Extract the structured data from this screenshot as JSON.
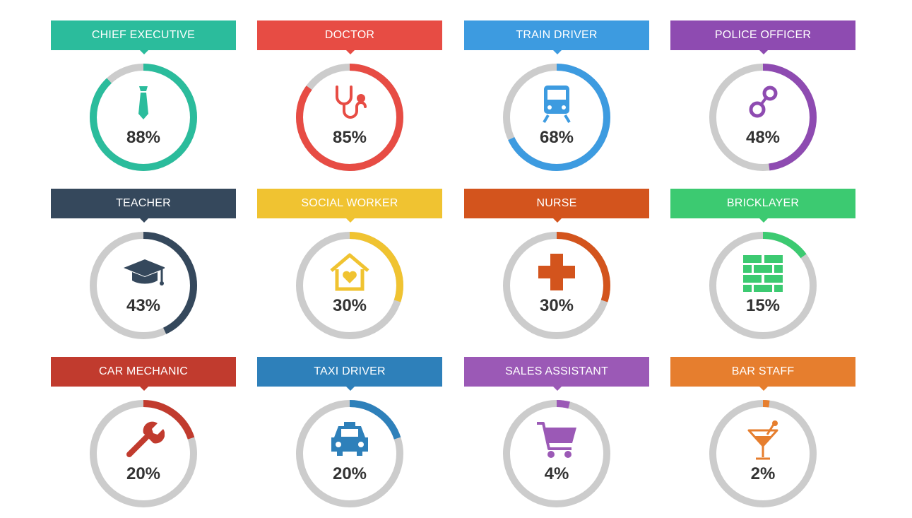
{
  "items": [
    {
      "label": "CHIEF EXECUTIVE",
      "percent_text": "88%",
      "value": 88,
      "color": "#2bbc9c",
      "icon": "tie-icon"
    },
    {
      "label": "DOCTOR",
      "percent_text": "85%",
      "value": 85,
      "color": "#e74c44",
      "icon": "stethoscope-icon"
    },
    {
      "label": "TRAIN DRIVER",
      "percent_text": "68%",
      "value": 68,
      "color": "#3d9be0",
      "icon": "train-icon"
    },
    {
      "label": "POLICE OFFICER",
      "percent_text": "48%",
      "value": 48,
      "color": "#8e4bb1",
      "icon": "handcuffs-icon"
    },
    {
      "label": "TEACHER",
      "percent_text": "43%",
      "value": 43,
      "color": "#35485c",
      "icon": "graduation-cap-icon"
    },
    {
      "label": "SOCIAL WORKER",
      "percent_text": "30%",
      "value": 30,
      "color": "#f0c331",
      "icon": "home-heart-icon"
    },
    {
      "label": "NURSE",
      "percent_text": "30%",
      "value": 30,
      "color": "#d3541d",
      "icon": "medical-cross-icon"
    },
    {
      "label": "BRICKLAYER",
      "percent_text": "15%",
      "value": 15,
      "color": "#3cca71",
      "icon": "brick-wall-icon"
    },
    {
      "label": "CAR MECHANIC",
      "percent_text": "20%",
      "value": 20,
      "color": "#c13b2e",
      "icon": "wrench-icon"
    },
    {
      "label": "TAXI DRIVER",
      "percent_text": "20%",
      "value": 20,
      "color": "#2e80ba",
      "icon": "taxi-icon"
    },
    {
      "label": "SALES ASSISTANT",
      "percent_text": "4%",
      "value": 4,
      "color": "#9b59b6",
      "icon": "shopping-cart-icon"
    },
    {
      "label": "BAR STAFF",
      "percent_text": "2%",
      "value": 2,
      "color": "#e67e2e",
      "icon": "cocktail-icon"
    }
  ],
  "track_color": "#cccccc"
}
